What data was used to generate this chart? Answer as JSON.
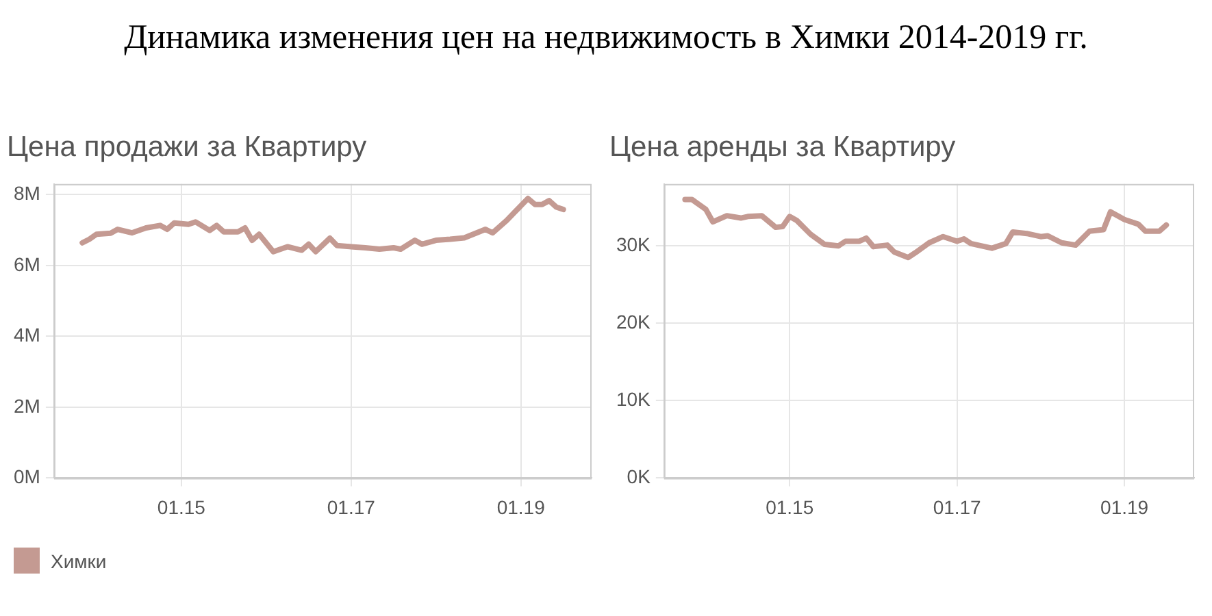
{
  "chart_data": [
    {
      "type": "line",
      "title": "Динамика изменения цен на недвижимость в Химки 2014-2019 гг.",
      "subtitle": "Цена продажи за Квартиру",
      "x": [
        "2013-11",
        "2013-12",
        "2014-01",
        "2014-03",
        "2014-04",
        "2014-06",
        "2014-08",
        "2014-10",
        "2014-11",
        "2014-12",
        "2015-02",
        "2015-03",
        "2015-05",
        "2015-06",
        "2015-07",
        "2015-09",
        "2015-10",
        "2015-11",
        "2015-12",
        "2016-02",
        "2016-04",
        "2016-06",
        "2016-07",
        "2016-08",
        "2016-10",
        "2016-11",
        "2017-01",
        "2017-03",
        "2017-05",
        "2017-07",
        "2017-08",
        "2017-10",
        "2017-11",
        "2018-01",
        "2018-03",
        "2018-05",
        "2018-08",
        "2018-09",
        "2018-11",
        "2018-12",
        "2019-02",
        "2019-03",
        "2019-04",
        "2019-05",
        "2019-06",
        "2019-07"
      ],
      "series": [
        {
          "name": "Химки",
          "color": "#c49a92",
          "values": [
            6.64,
            6.74,
            6.88,
            6.91,
            7.02,
            6.92,
            7.06,
            7.13,
            7.02,
            7.2,
            7.16,
            7.23,
            6.99,
            7.13,
            6.95,
            6.95,
            7.06,
            6.71,
            6.88,
            6.39,
            6.53,
            6.43,
            6.6,
            6.39,
            6.77,
            6.56,
            6.53,
            6.5,
            6.46,
            6.5,
            6.46,
            6.71,
            6.6,
            6.71,
            6.74,
            6.78,
            7.02,
            6.92,
            7.27,
            7.48,
            7.89,
            7.72,
            7.72,
            7.83,
            7.65,
            7.58
          ]
        }
      ],
      "xlim": [
        "2013-07",
        "2019-11"
      ],
      "xticks": [
        {
          "value": "2015-01",
          "label": "01.15"
        },
        {
          "value": "2017-01",
          "label": "01.17"
        },
        {
          "value": "2019-01",
          "label": "01.19"
        }
      ],
      "ylim": [
        0,
        8.3
      ],
      "yticks": [
        {
          "value": 0,
          "label": "0M"
        },
        {
          "value": 2,
          "label": "2M"
        },
        {
          "value": 4,
          "label": "4M"
        },
        {
          "value": 6,
          "label": "6M"
        },
        {
          "value": 8,
          "label": "8M"
        }
      ],
      "grid": true,
      "legend": "bottom left",
      "marker": "none"
    },
    {
      "type": "line",
      "subtitle": "Цена аренды за Квартиру",
      "x": [
        "2013-10",
        "2013-11",
        "2014-01",
        "2014-02",
        "2014-04",
        "2014-06",
        "2014-07",
        "2014-09",
        "2014-11",
        "2014-12",
        "2015-01",
        "2015-02",
        "2015-04",
        "2015-06",
        "2015-08",
        "2015-09",
        "2015-11",
        "2015-12",
        "2016-01",
        "2016-03",
        "2016-04",
        "2016-06",
        "2016-07",
        "2016-09",
        "2016-11",
        "2017-01",
        "2017-02",
        "2017-03",
        "2017-04",
        "2017-06",
        "2017-08",
        "2017-09",
        "2017-11",
        "2018-01",
        "2018-02",
        "2018-04",
        "2018-06",
        "2018-08",
        "2018-10",
        "2018-11",
        "2019-01",
        "2019-03",
        "2019-04",
        "2019-06",
        "2019-07"
      ],
      "series": [
        {
          "color": "#c49a92",
          "values": [
            36,
            36,
            34.7,
            33.1,
            33.9,
            33.6,
            33.8,
            33.9,
            32.4,
            32.5,
            33.8,
            33.3,
            31.5,
            30.2,
            30,
            30.6,
            30.6,
            31,
            29.9,
            30.1,
            29.2,
            28.5,
            29.1,
            30.4,
            31.2,
            30.6,
            30.9,
            30.3,
            30.1,
            29.7,
            30.3,
            31.8,
            31.6,
            31.2,
            31.3,
            30.4,
            30.1,
            31.9,
            32.1,
            34.4,
            33.4,
            32.8,
            31.9,
            31.9,
            32.7
          ]
        }
      ],
      "xlim": [
        "2013-07",
        "2019-11"
      ],
      "xticks": [
        {
          "value": "2015-01",
          "label": "01.15"
        },
        {
          "value": "2017-01",
          "label": "01.17"
        },
        {
          "value": "2019-01",
          "label": "01.19"
        }
      ],
      "ylim": [
        0,
        38
      ],
      "yticks": [
        {
          "value": 0,
          "label": "0K"
        },
        {
          "value": 10,
          "label": "10K"
        },
        {
          "value": 20,
          "label": "20K"
        },
        {
          "value": 30,
          "label": "30K"
        }
      ],
      "grid": true,
      "legend": false,
      "marker": "none"
    }
  ]
}
